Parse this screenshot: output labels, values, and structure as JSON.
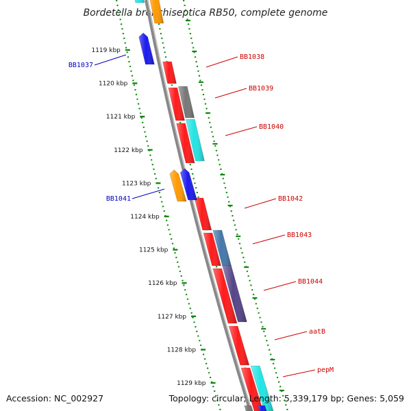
{
  "title": "Bordetella bronchiseptica RB50, complete genome",
  "footer": {
    "accession": "Accession: NC_002927",
    "summary": "Topology: circular; Length: 5,339,179 bp; Genes: 5,059"
  },
  "ticks": [
    "1119 kbp",
    "1120 kbp",
    "1121 kbp",
    "1122 kbp",
    "1123 kbp",
    "1124 kbp",
    "1125 kbp",
    "1126 kbp",
    "1127 kbp",
    "1128 kbp",
    "1129 kbp"
  ],
  "colors": {
    "red": "#ff1a1a",
    "blue": "#1a1aee",
    "orange": "#ff9900",
    "cyan": "#22e4e4",
    "gray": "#777777",
    "steelblue": "#4477aa",
    "slate": "#554488",
    "backbone": "#888888",
    "dots": "#118811",
    "label_red": "#cc0000",
    "label_blue": "#0000bb"
  },
  "genes": {
    "left": [
      {
        "name": "BB1037",
        "color": "blue"
      },
      {
        "name": "BB1041",
        "color": "blue"
      }
    ],
    "right": [
      {
        "name": "BB1038",
        "color": "red"
      },
      {
        "name": "BB1039",
        "color": "gray"
      },
      {
        "name": "BB1040",
        "color": "cyan"
      },
      {
        "name": "BB1042",
        "color": "red"
      },
      {
        "name": "BB1043",
        "color": "steelblue"
      },
      {
        "name": "BB1044",
        "color": "slate"
      },
      {
        "name": "aatB",
        "color": "red"
      },
      {
        "name": "pepM",
        "color": "cyan"
      }
    ]
  }
}
